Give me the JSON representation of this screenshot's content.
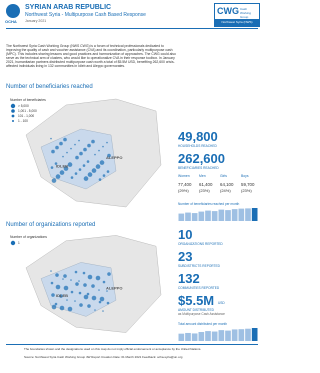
{
  "header": {
    "org": "OCHA",
    "country": "SYRIAN ARAB REPUBLIC",
    "subtitle": "Northwest Syria - Multipurpose Cash Based Response",
    "date": "January 2021",
    "logo": {
      "abbr": "CWG",
      "name": "Cash Working Group",
      "region": "Northwest Syria (NWS)"
    }
  },
  "intro": "The Northwest Syria Cash Working Group (NWS CWG) is a forum of technical professionals dedicated to improving the quality of cash and voucher assistance (CVA) and its coordination, particularly multipurpose cash (MPC). This includes sharing lessons and good practices and harmonization of approaches. The CWG could also serve as the technical arm of clusters, who would like to operationalize CVA in their response toolbox. In January 2021, humanitarian partners distributed multipurpose cash worth a total of $5.5M USD, benefiting 262,600 crisis-affected individuals living in 132 communities in Idleb and Aleppo governorates.",
  "beneficiaries": {
    "title": "Number of beneficiaries reached",
    "legend_title": "Number of beneficiaries",
    "legend": [
      "> 5,000",
      "1,001 - 5,000",
      "101 - 1,000",
      "1 - 100"
    ],
    "map_labels": [
      "IDLEB",
      "ALEPPO"
    ],
    "households": {
      "value": "49,800",
      "label": "HOUSEHOLDS REACHED"
    },
    "individuals": {
      "value": "262,600",
      "label": "BENEFICIARIES REACHED"
    },
    "breakdown": [
      {
        "label": "Women",
        "value": "77,400",
        "share": "(29%)"
      },
      {
        "label": "Men",
        "value": "61,400",
        "share": "(23%)"
      },
      {
        "label": "Girls",
        "value": "64,100",
        "share": "(24%)"
      },
      {
        "label": "Boys",
        "value": "59,700",
        "share": "(23%)"
      }
    ],
    "monthly": {
      "title": "Number of beneficiaries reached per month",
      "values": [
        150000,
        170000,
        160000,
        190000,
        210000,
        200000,
        230000,
        220000,
        240000,
        250000,
        255000,
        262600
      ]
    }
  },
  "organizations": {
    "title": "Number of organizations reported",
    "legend_title": "Number of organizations",
    "legend": [
      "1"
    ],
    "map_labels": [
      "IDLEB",
      "ALEPPO"
    ],
    "stats": [
      {
        "value": "10",
        "label": "ORGANIZATIONS REPORTED"
      },
      {
        "value": "23",
        "label": "SUBDISTRICTS REPORTED"
      },
      {
        "value": "132",
        "label": "COMMUNITIES REPORTED"
      }
    ],
    "amount": {
      "value": "$5.5M",
      "unit": "USD",
      "label": "AMOUNT DISTRIBUTED",
      "note": "as Multipurpose Cash Assistance"
    },
    "monthly": {
      "title": "Total amount distributed per month",
      "values": [
        3.1,
        3.4,
        3.2,
        3.8,
        4.2,
        4.0,
        4.6,
        4.4,
        4.9,
        5.0,
        5.2,
        5.5
      ]
    }
  },
  "footer": {
    "disclaimer": "The boundaries shown and the designations used on this map do not imply official endorsement or acceptance by the United Nations.",
    "source": "Source: Northwest Syria Cash Working Group 4W Report   Creation Date: 01 March 2021   Feedback: ocha-syria@un.org"
  }
}
